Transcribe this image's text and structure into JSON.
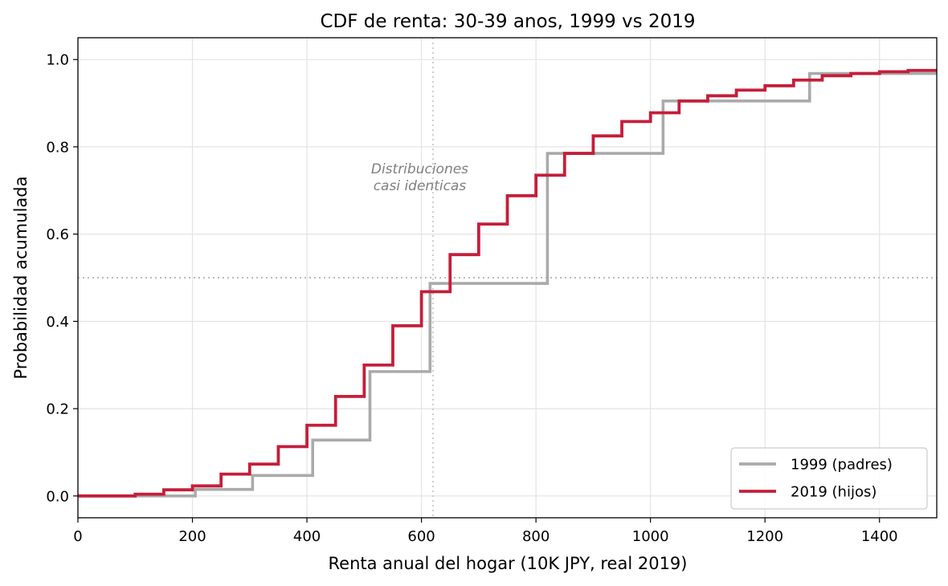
{
  "chart_data": {
    "type": "line",
    "title": "CDF de renta: 30-39 anos, 1999 vs 2019",
    "xlabel": "Renta anual del hogar (10K JPY, real 2019)",
    "ylabel": "Probabilidad acumulada",
    "xlim": [
      0,
      1500
    ],
    "ylim": [
      -0.05,
      1.05
    ],
    "xticks": [
      "0",
      "200",
      "400",
      "600",
      "800",
      "1000",
      "1200",
      "1400"
    ],
    "yticks": [
      "0.0",
      "0.2",
      "0.4",
      "0.6",
      "0.8",
      "1.0"
    ],
    "grid": true,
    "legend_position": "lower-right",
    "series": [
      {
        "name": "1999 (padres)",
        "color": "#aaaaaa",
        "step": "post",
        "x": [
          0,
          205,
          305,
          410,
          510,
          615,
          820,
          1022,
          1278,
          1500
        ],
        "y": [
          0.0,
          0.015,
          0.047,
          0.128,
          0.285,
          0.487,
          0.785,
          0.905,
          0.968,
          0.968
        ]
      },
      {
        "name": "2019 (hijos)",
        "color": "#c41e3a",
        "step": "post",
        "x": [
          0,
          100,
          150,
          200,
          250,
          300,
          350,
          400,
          450,
          500,
          550,
          600,
          650,
          700,
          750,
          800,
          850,
          900,
          950,
          1000,
          1050,
          1100,
          1150,
          1200,
          1250,
          1300,
          1350,
          1400,
          1450,
          1500
        ],
        "y": [
          0.0,
          0.004,
          0.014,
          0.023,
          0.05,
          0.073,
          0.113,
          0.162,
          0.228,
          0.3,
          0.39,
          0.468,
          0.553,
          0.623,
          0.688,
          0.735,
          0.785,
          0.825,
          0.858,
          0.878,
          0.905,
          0.917,
          0.93,
          0.94,
          0.953,
          0.963,
          0.968,
          0.972,
          0.975,
          0.975
        ]
      }
    ],
    "reference_lines": [
      {
        "orientation": "vertical",
        "value": 620,
        "style": "dotted"
      },
      {
        "orientation": "horizontal",
        "value": 0.5,
        "style": "dotted"
      }
    ],
    "annotations": [
      {
        "lines": [
          "Distribuciones",
          "casi identicas"
        ],
        "x": 597,
        "y": 0.71,
        "color": "#808080"
      }
    ]
  }
}
